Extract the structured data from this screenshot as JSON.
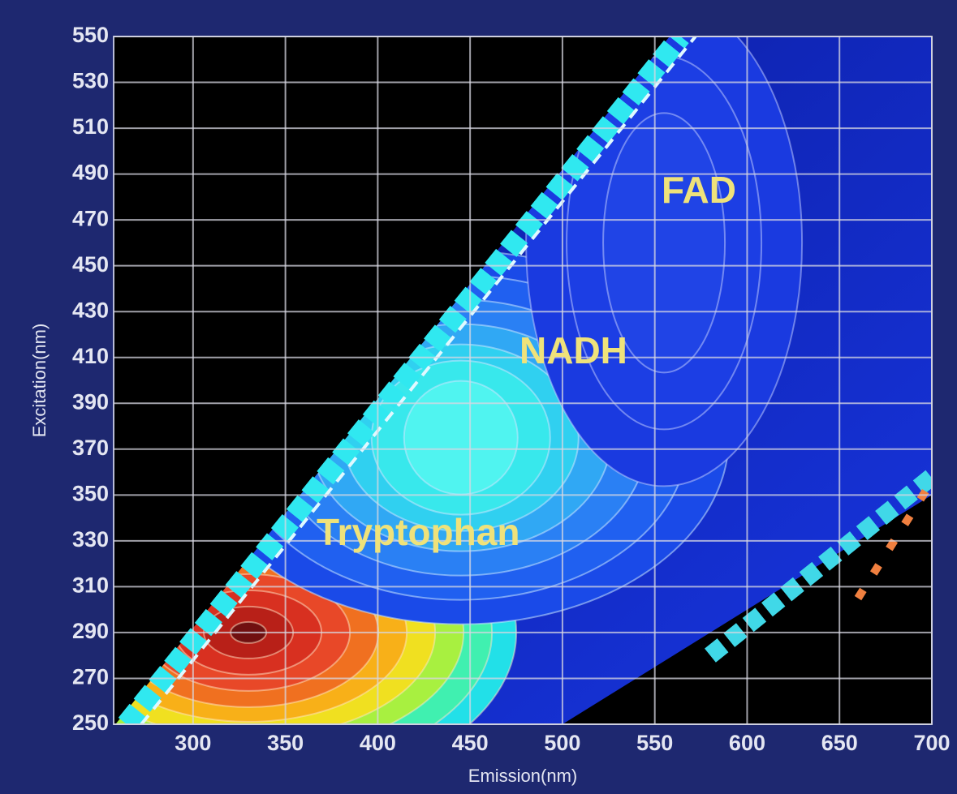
{
  "chart_data": {
    "type": "contour",
    "x_label": "Emission(nm)",
    "y_label": "Excitation(nm)",
    "xlim": [
      257,
      700
    ],
    "ylim": [
      250,
      550
    ],
    "xticks": [
      300,
      350,
      400,
      450,
      500,
      550,
      600,
      650,
      700
    ],
    "yticks": [
      250,
      270,
      290,
      310,
      330,
      350,
      370,
      390,
      410,
      430,
      450,
      470,
      490,
      510,
      530,
      550
    ],
    "grid": true,
    "peaks": [
      {
        "label": "Tryptophan",
        "emission": 330,
        "excitation": 290
      },
      {
        "label": "NADH",
        "emission": 445,
        "excitation": 375
      },
      {
        "label": "FAD",
        "emission": 555,
        "excitation": 460
      }
    ]
  }
}
